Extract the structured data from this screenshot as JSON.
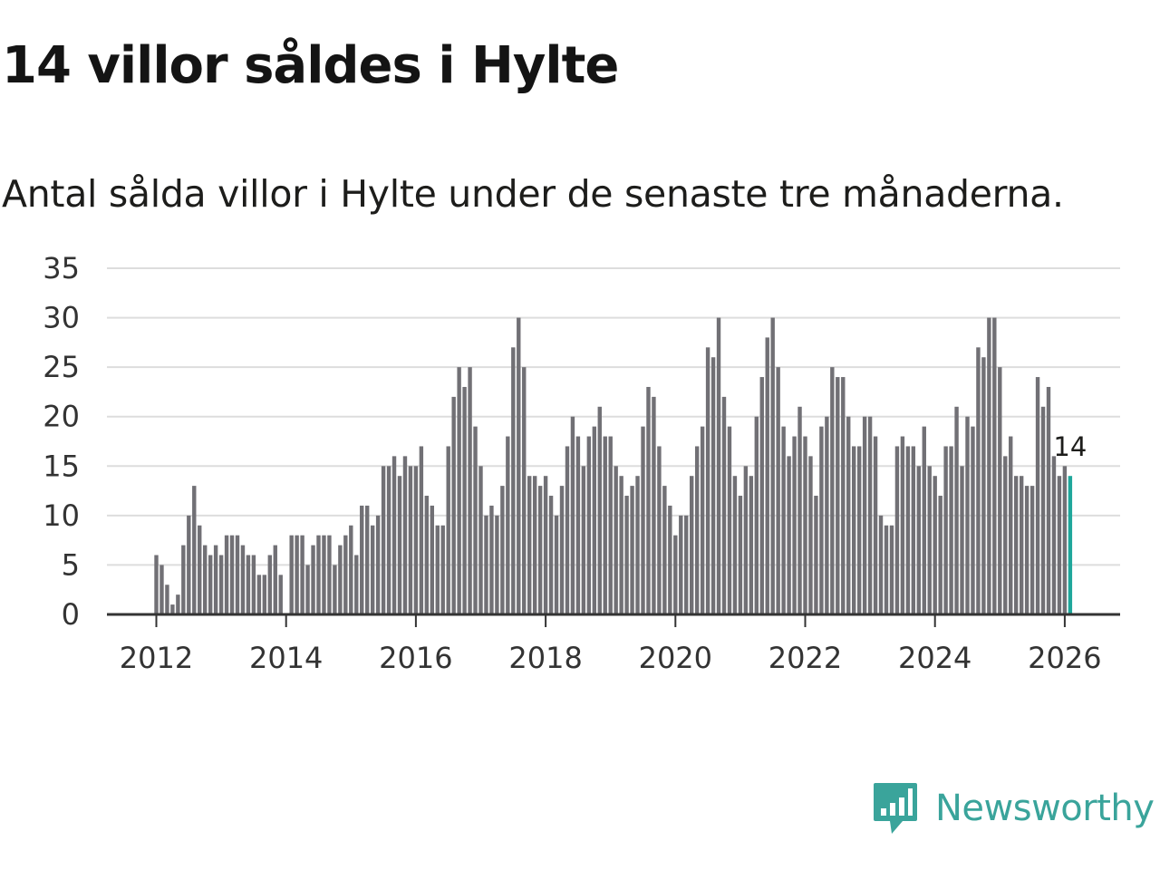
{
  "title": "14 villor såldes i Hylte",
  "subtitle": "Antal sålda villor i Hylte under de senaste tre månaderna.",
  "brand": {
    "name": "Newsworthy",
    "icon": "newsworthy-logo-icon",
    "color": "#3aa49b"
  },
  "colors": {
    "bar": "#717075",
    "highlight": "#1fa79b",
    "grid": "#dddddd",
    "axis": "#333333"
  },
  "chart_data": {
    "type": "bar",
    "title": "14 villor såldes i Hylte",
    "subtitle": "Antal sålda villor i Hylte under de senaste tre månaderna.",
    "xlabel": "",
    "ylabel": "",
    "ylim": [
      0,
      35
    ],
    "yticks": [
      0,
      5,
      10,
      15,
      20,
      25,
      30,
      35
    ],
    "xticks": [
      2012,
      2014,
      2016,
      2018,
      2020,
      2022,
      2024,
      2026
    ],
    "grid": true,
    "start": "2012-01",
    "highlight": {
      "label": "14",
      "index": 169,
      "value": 14
    },
    "values": [
      6,
      5,
      3,
      1,
      2,
      7,
      10,
      13,
      9,
      7,
      6,
      7,
      6,
      8,
      8,
      8,
      7,
      6,
      6,
      4,
      4,
      6,
      7,
      4,
      null,
      8,
      8,
      8,
      5,
      7,
      8,
      8,
      8,
      5,
      7,
      8,
      9,
      6,
      11,
      11,
      9,
      10,
      15,
      15,
      16,
      14,
      16,
      15,
      15,
      17,
      12,
      11,
      9,
      9,
      17,
      22,
      25,
      23,
      25,
      19,
      15,
      10,
      11,
      10,
      13,
      18,
      27,
      30,
      25,
      14,
      14,
      13,
      14,
      12,
      10,
      13,
      17,
      20,
      18,
      15,
      18,
      19,
      21,
      18,
      18,
      15,
      14,
      12,
      13,
      14,
      19,
      23,
      22,
      17,
      13,
      11,
      8,
      10,
      10,
      14,
      17,
      19,
      27,
      26,
      30,
      22,
      19,
      14,
      12,
      15,
      14,
      20,
      24,
      28,
      30,
      25,
      19,
      16,
      18,
      21,
      18,
      16,
      12,
      19,
      20,
      25,
      24,
      24,
      20,
      17,
      17,
      20,
      20,
      18,
      10,
      9,
      9,
      17,
      18,
      17,
      17,
      15,
      19,
      15,
      14,
      12,
      17,
      17,
      21,
      15,
      20,
      19,
      27,
      26,
      30,
      30,
      25,
      16,
      18,
      14,
      14,
      13,
      13,
      24,
      21,
      23,
      16,
      14,
      15,
      14
    ]
  }
}
